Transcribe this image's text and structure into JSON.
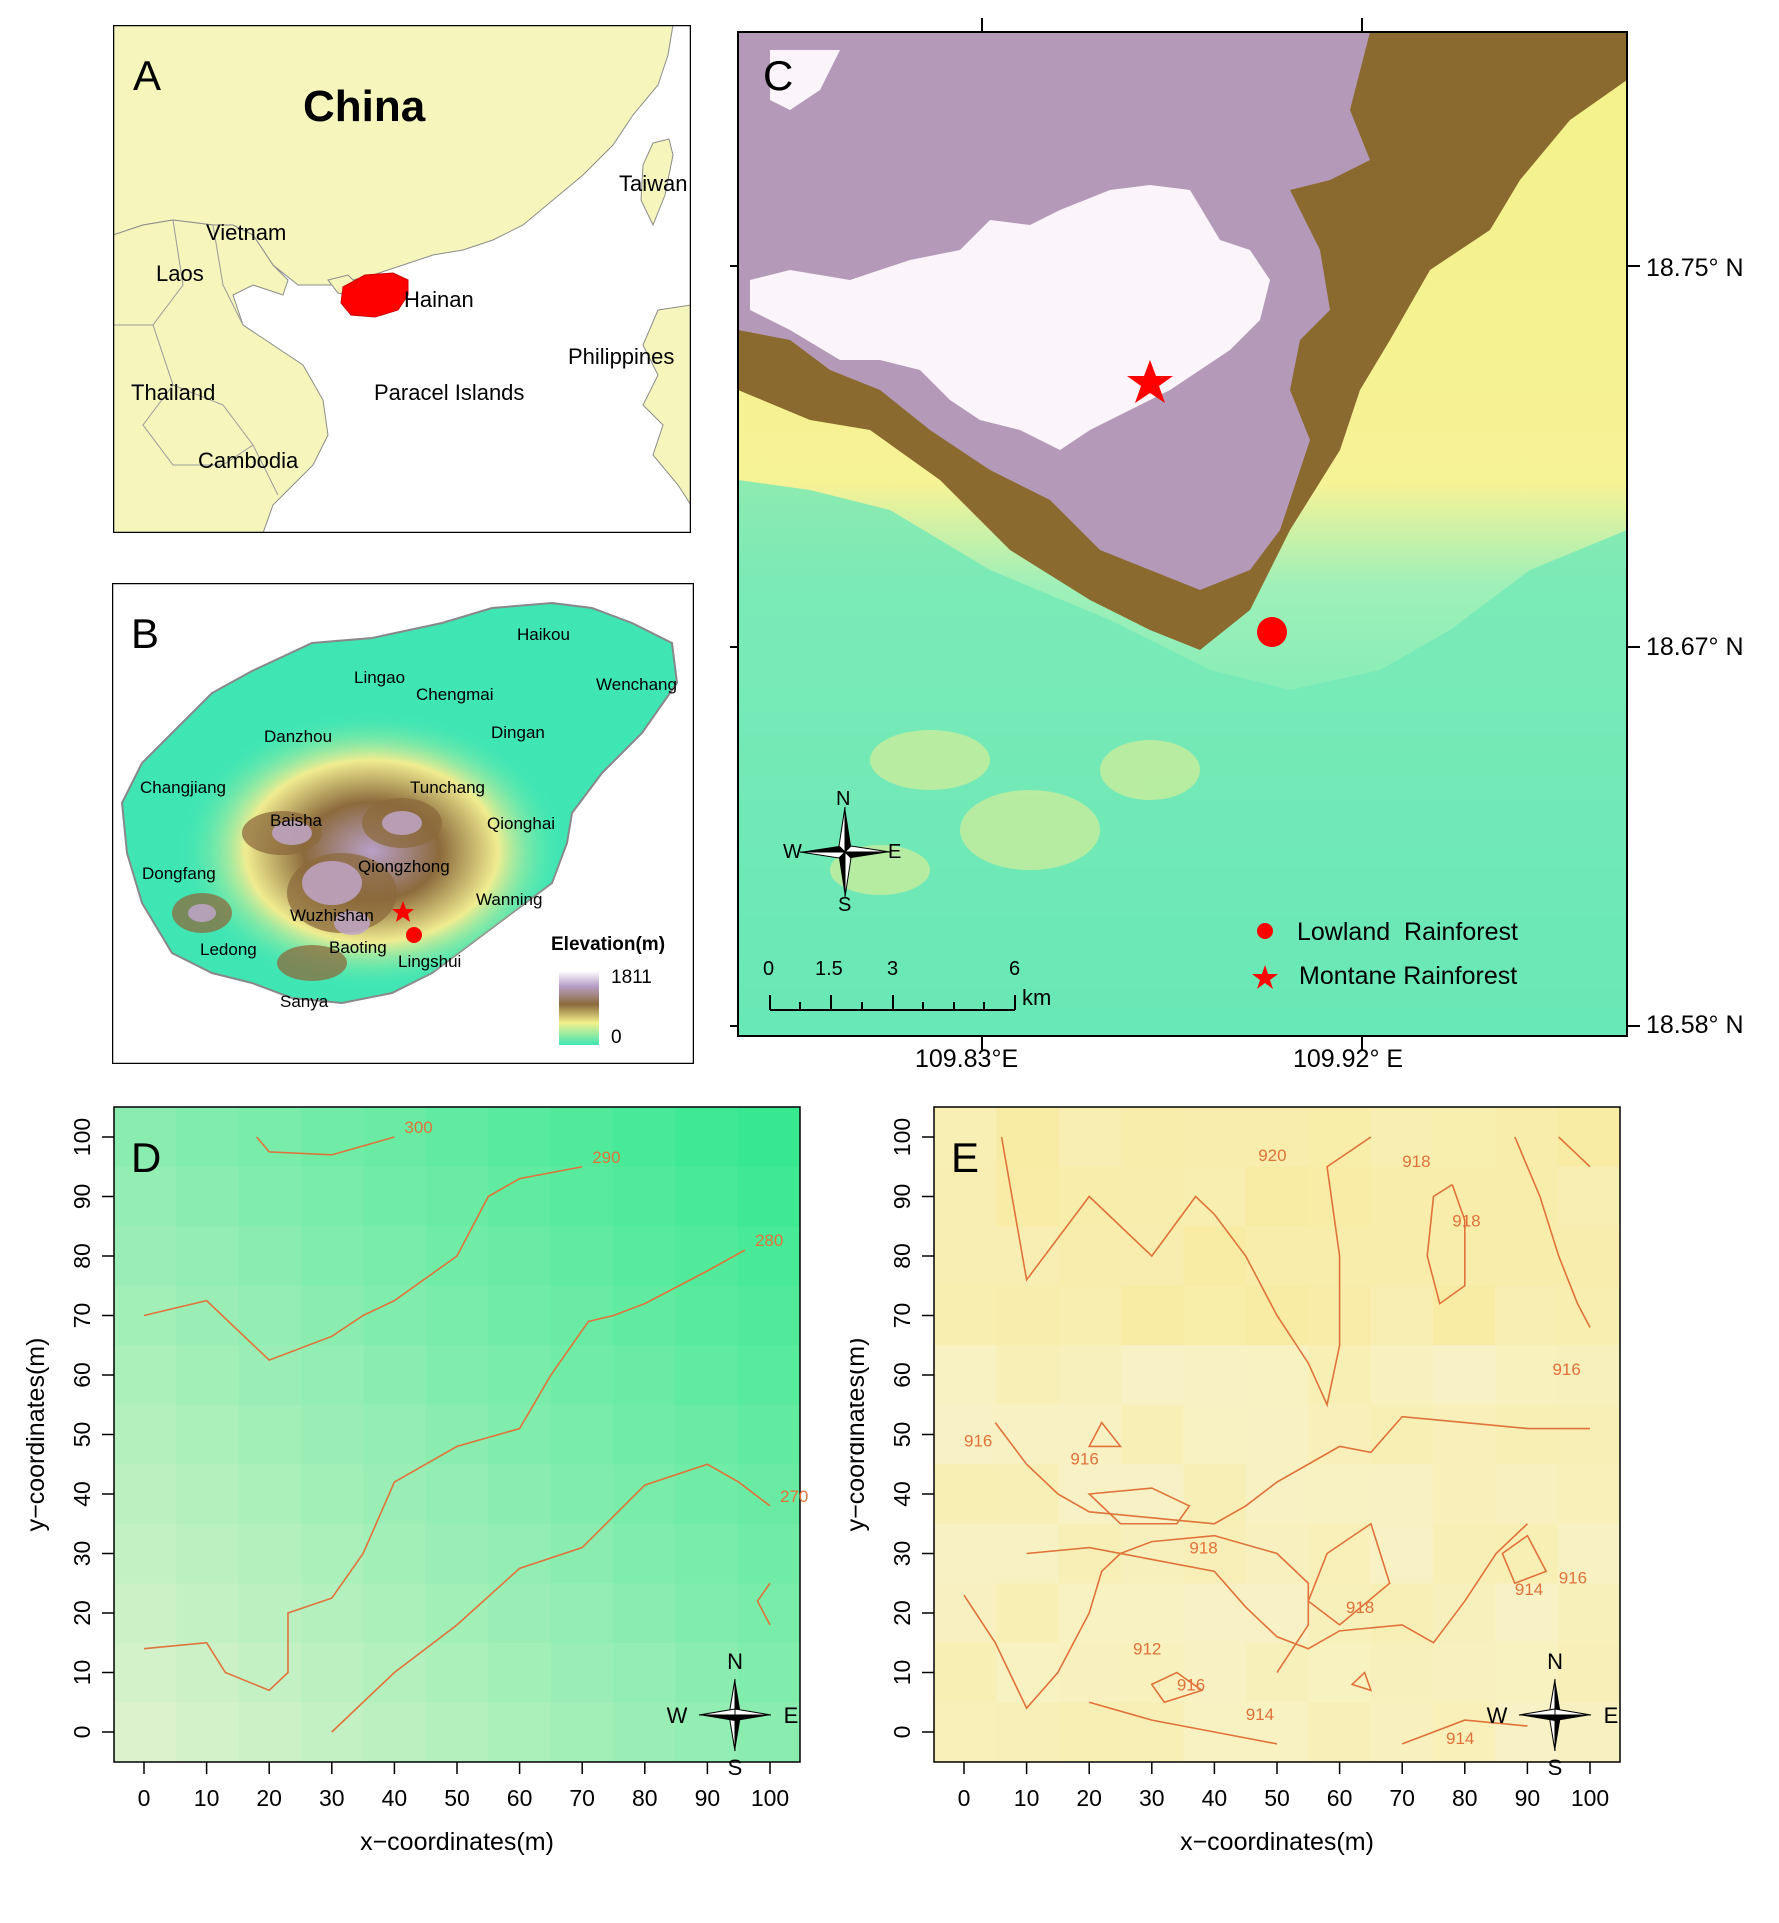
{
  "panelA": {
    "letter": "A",
    "title": "China",
    "regions": [
      "Vietnam",
      "Laos",
      "Thailand",
      "Cambodia",
      "Hainan",
      "Paracel Islands",
      "Philippines",
      "Taiwan"
    ],
    "colors": {
      "land": "#f5f5bc",
      "sea": "#ffffff",
      "hainan": "#ff0000"
    }
  },
  "panelB": {
    "letter": "B",
    "cities": [
      "Haikou",
      "Wenchang",
      "Lingao",
      "Chengmai",
      "Danzhou",
      "Dingan",
      "Changjiang",
      "Tunchang",
      "Qionghai",
      "Baisha",
      "Qiongzhong",
      "Dongfang",
      "Wanning",
      "Wuzhishan",
      "Baoting",
      "Ledong",
      "Lingshui",
      "Sanya"
    ],
    "legend": {
      "title": "Elevation(m)",
      "max": "1811",
      "min": "0"
    }
  },
  "panelC": {
    "letter": "C",
    "lon_labels": [
      "109.83°E",
      "109.92° E"
    ],
    "lat_labels": [
      "18.75° N",
      "18.67° N",
      "18.58° N"
    ],
    "compass": {
      "n": "N",
      "s": "S",
      "e": "E",
      "w": "W"
    },
    "scale": {
      "ticks": [
        "0",
        "1.5",
        "3",
        "6"
      ],
      "unit": "km"
    },
    "legend": [
      {
        "symbol": "circle",
        "label": "Lowland  Rainforest"
      },
      {
        "symbol": "star",
        "label": "Montane Rainforest"
      }
    ],
    "colors": {
      "marker": "#ff0000"
    }
  },
  "chart_data": [
    {
      "panel": "D",
      "type": "heatmap",
      "xlabel": "x−coordinates(m)",
      "ylabel": "y−coordinates(m)",
      "xlim": [
        0,
        100
      ],
      "ylim": [
        0,
        100
      ],
      "x_ticks": [
        0,
        10,
        20,
        30,
        40,
        50,
        60,
        70,
        80,
        90,
        100
      ],
      "y_ticks": [
        0,
        10,
        20,
        30,
        40,
        50,
        60,
        70,
        80,
        90,
        100
      ],
      "contours": [
        {
          "level": "300",
          "points": [
            [
              18,
              100
            ],
            [
              20,
              97.5
            ],
            [
              30,
              97
            ],
            [
              40,
              100
            ]
          ]
        },
        {
          "level": "290",
          "points": [
            [
              0,
              70
            ],
            [
              10,
              72.5
            ],
            [
              20,
              62.5
            ],
            [
              30,
              66.5
            ],
            [
              35,
              70
            ],
            [
              40,
              72.5
            ],
            [
              50,
              80
            ],
            [
              55,
              90
            ],
            [
              60,
              93
            ],
            [
              70,
              95
            ]
          ]
        },
        {
          "level": "280",
          "points": [
            [
              0,
              14
            ],
            [
              10,
              15
            ],
            [
              13,
              10
            ],
            [
              20,
              7
            ],
            [
              23,
              10
            ],
            [
              23,
              20
            ],
            [
              30,
              22.5
            ],
            [
              35,
              30
            ],
            [
              40,
              42
            ],
            [
              50,
              48
            ],
            [
              60,
              51
            ],
            [
              65,
              60
            ],
            [
              71,
              69
            ],
            [
              75,
              70
            ],
            [
              80,
              72
            ],
            [
              90,
              77.5
            ],
            [
              96,
              81
            ]
          ]
        },
        {
          "level": "270",
          "points": [
            [
              30,
              0
            ],
            [
              40,
              10
            ],
            [
              50,
              18
            ],
            [
              60,
              27.5
            ],
            [
              70,
              31
            ],
            [
              80,
              41.5
            ],
            [
              90,
              45
            ],
            [
              95,
              42
            ],
            [
              100,
              38
            ]
          ]
        }
      ],
      "labels": [
        "300",
        "290",
        "280",
        "270"
      ]
    },
    {
      "panel": "E",
      "type": "heatmap",
      "xlabel": "x−coordinates(m)",
      "ylabel": "y−coordinates(m)",
      "xlim": [
        0,
        100
      ],
      "ylim": [
        0,
        100
      ],
      "x_ticks": [
        0,
        10,
        20,
        30,
        40,
        50,
        60,
        70,
        80,
        90,
        100
      ],
      "y_ticks": [
        0,
        10,
        20,
        30,
        40,
        50,
        60,
        70,
        80,
        90,
        100
      ],
      "contour_labels": [
        "920",
        "918",
        "918",
        "916",
        "916",
        "916",
        "918",
        "912",
        "916",
        "914",
        "918",
        "914",
        "914",
        "916"
      ]
    }
  ]
}
